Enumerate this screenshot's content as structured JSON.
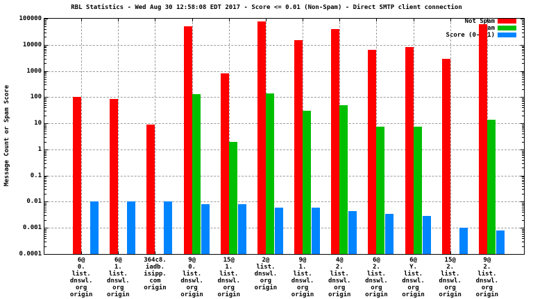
{
  "title": "RBL Statistics - Wed Aug 30 12:58:08 EDT 2017 - Score <= 0.01 (Non-Spam) - Direct SMTP client connection",
  "ylabel": "Message Count or Spam Score",
  "legend": [
    {
      "label": "Not Spam",
      "color": "#ff0000"
    },
    {
      "label": "Spam",
      "color": "#00bf00"
    },
    {
      "label": "Score (0-0.1)",
      "color": "#0084ff"
    }
  ],
  "colors": {
    "grid": "#9a9a9a",
    "axis": "#000000",
    "background": "#ffffff"
  },
  "chart_data": {
    "type": "bar",
    "y_scale": "log",
    "ylim": [
      0.0001,
      100000
    ],
    "grid": true,
    "legend_position": "top-right",
    "title": "RBL Statistics - Wed Aug 30 12:58:08 EDT 2017 - Score <= 0.01 (Non-Spam) - Direct SMTP client connection",
    "xlabel": "",
    "ylabel": "Message Count or Spam Score",
    "ytick_labels": [
      "100000",
      "10000",
      "1000",
      "100",
      "10",
      "1",
      "0.1",
      "0.01",
      "0.001",
      "0.0001"
    ],
    "categories": [
      "6@0.list.dnswl.org origin",
      "6@1.list.dnswl.org origin",
      "364c8.iadb.isipp.com origin",
      "9@0.list.dnswl.org origin",
      "15@1.list.dnswl.org origin",
      "2@list.dnswl.org origin",
      "9@1.list.dnswl.org origin",
      "4@2.list.dnswl.org origin",
      "6@2.list.dnswl.org origin",
      "6@Y.list.dnswl.org origin",
      "15@2.list.dnswl.org origin",
      "9@2.list.dnswl.org origin"
    ],
    "category_label_lines": [
      [
        "6@",
        "0.",
        "list.",
        "dnswl.",
        "org",
        "origin"
      ],
      [
        "6@",
        "1.",
        "list.",
        "dnswl.",
        "org",
        "origin"
      ],
      [
        "364c8.",
        "iadb.",
        "isipp.",
        "com",
        "origin"
      ],
      [
        "9@",
        "0.",
        "list.",
        "dnswl.",
        "org",
        "origin"
      ],
      [
        "15@",
        "1.",
        "list.",
        "dnswl.",
        "org",
        "origin"
      ],
      [
        "2@",
        "list.",
        "dnswl.",
        "org",
        "origin"
      ],
      [
        "9@",
        "1.",
        "list.",
        "dnswl.",
        "org",
        "origin"
      ],
      [
        "4@",
        "2.",
        "list.",
        "dnswl.",
        "org",
        "origin"
      ],
      [
        "6@",
        "2.",
        "list.",
        "dnswl.",
        "org",
        "origin"
      ],
      [
        "6@",
        "Y.",
        "list.",
        "dnswl.",
        "org",
        "origin"
      ],
      [
        "15@",
        "2.",
        "list.",
        "dnswl.",
        "org",
        "origin"
      ],
      [
        "9@",
        "2.",
        "list.",
        "dnswl.",
        "org",
        "origin"
      ]
    ],
    "series": [
      {
        "name": "Not Spam",
        "color": "#ff0000",
        "values": [
          100,
          85,
          9,
          50000,
          800,
          80000,
          15000,
          40000,
          6500,
          8000,
          3000,
          60000
        ]
      },
      {
        "name": "Spam",
        "color": "#00bf00",
        "values": [
          0,
          0,
          0,
          130,
          2,
          140,
          30,
          50,
          7.5,
          7.5,
          0,
          14
        ]
      },
      {
        "name": "Score (0-0.1)",
        "color": "#0084ff",
        "values": [
          0.01,
          0.01,
          0.01,
          0.008,
          0.008,
          0.006,
          0.006,
          0.0045,
          0.0035,
          0.0028,
          0.001,
          0.0008
        ]
      }
    ]
  }
}
